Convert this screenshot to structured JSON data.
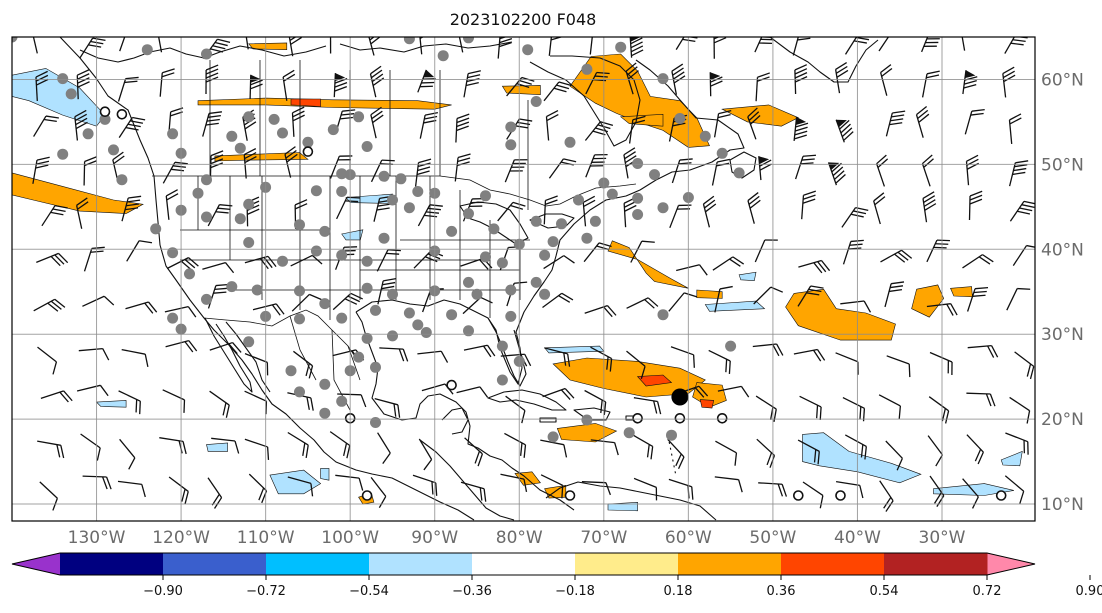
{
  "title": "2023102200 F048",
  "map": {
    "lon_range": [
      -140,
      -19
    ],
    "lat_range": [
      8,
      65
    ],
    "latitude_labels": [
      {
        "lat": 60,
        "label": "60°N"
      },
      {
        "lat": 50,
        "label": "50°N"
      },
      {
        "lat": 40,
        "label": "40°N"
      },
      {
        "lat": 30,
        "label": "30°N"
      },
      {
        "lat": 20,
        "label": "20°N"
      },
      {
        "lat": 10,
        "label": "10°N"
      }
    ],
    "longitude_labels": [
      {
        "lon": -130,
        "label": "130°W"
      },
      {
        "lon": -120,
        "label": "120°W"
      },
      {
        "lon": -110,
        "label": "110°W"
      },
      {
        "lon": -100,
        "label": "100°W"
      },
      {
        "lon": -90,
        "label": "90°W"
      },
      {
        "lon": -80,
        "label": "80°W"
      },
      {
        "lon": -70,
        "label": "70°W"
      },
      {
        "lon": -60,
        "label": "60°W"
      },
      {
        "lon": -50,
        "label": "50°W"
      },
      {
        "lon": -40,
        "label": "40°W"
      },
      {
        "lon": -30,
        "label": "30°W"
      }
    ],
    "gridlines": true
  },
  "colorbar": {
    "extend": "both",
    "colors": [
      "#9932cc",
      "#000080",
      "#3a5fcd",
      "#00bfff",
      "#b0e2ff",
      "#ffffff",
      "#ffec8b",
      "#ffa500",
      "#ff4500",
      "#b22222",
      "#ff88aa"
    ],
    "bounds": [
      -0.9,
      -0.72,
      -0.54,
      -0.36,
      -0.18,
      0.18,
      0.36,
      0.54,
      0.72,
      0.9
    ],
    "tick_labels": [
      "−0.90",
      "−0.72",
      "−0.54",
      "−0.36",
      "−0.18",
      "0.18",
      "0.36",
      "0.54",
      "0.72",
      "0.90"
    ]
  },
  "colors": {
    "orange": "#ffa500",
    "red": "#ff4500",
    "light_blue": "#00bfff",
    "gray_marker": "#808080"
  },
  "fields": [
    {
      "level": 0.36,
      "poly": [
        [
          -76,
          26.5
        ],
        [
          -72,
          27.2
        ],
        [
          -66,
          26.8
        ],
        [
          -61,
          26
        ],
        [
          -58,
          24.6
        ],
        [
          -60,
          23
        ],
        [
          -65,
          22.6
        ],
        [
          -70,
          23.6
        ],
        [
          -74,
          24.6
        ]
      ]
    },
    {
      "level": 0.54,
      "poly": [
        [
          -66,
          25
        ],
        [
          -63,
          25.2
        ],
        [
          -62,
          24.3
        ],
        [
          -65,
          23.9
        ]
      ]
    },
    {
      "level": 0.36,
      "poly": [
        [
          -59,
          24.3
        ],
        [
          -56,
          24
        ],
        [
          -55.5,
          22.2
        ],
        [
          -57.5,
          21.4
        ],
        [
          -59.5,
          22.6
        ]
      ]
    },
    {
      "level": 0.54,
      "poly": [
        [
          -58.6,
          22.3
        ],
        [
          -57,
          22.2
        ],
        [
          -57.2,
          21.3
        ],
        [
          -58.4,
          21.4
        ]
      ]
    },
    {
      "level": 0.36,
      "poly": [
        [
          -75.5,
          18.9
        ],
        [
          -71,
          19.5
        ],
        [
          -68.5,
          18.6
        ],
        [
          -71,
          17.3
        ],
        [
          -75,
          17.6
        ]
      ]
    },
    {
      "level": 0.36,
      "poly": [
        [
          -69,
          41
        ],
        [
          -67,
          40.2
        ],
        [
          -65,
          37.2
        ],
        [
          -64,
          36.2
        ],
        [
          -60,
          35.4
        ],
        [
          -62,
          36.5
        ],
        [
          -66,
          38.8
        ],
        [
          -69.5,
          39.8
        ]
      ]
    },
    {
      "level": 0.36,
      "poly": [
        [
          -59,
          35.2
        ],
        [
          -56,
          35
        ],
        [
          -56,
          34.2
        ],
        [
          -59,
          34.3
        ]
      ]
    },
    {
      "level": 0.36,
      "poly": [
        [
          -47.5,
          34.8
        ],
        [
          -44,
          35.3
        ],
        [
          -42.5,
          33
        ],
        [
          -39,
          32.5
        ],
        [
          -35.5,
          31.2
        ],
        [
          -36,
          29.3
        ],
        [
          -42,
          29.3
        ],
        [
          -47,
          31
        ],
        [
          -48.5,
          33.2
        ]
      ]
    },
    {
      "level": 0.36,
      "poly": [
        [
          -33,
          35.3
        ],
        [
          -30.5,
          35.8
        ],
        [
          -29.8,
          34.2
        ],
        [
          -31.5,
          32
        ],
        [
          -33.6,
          33
        ]
      ]
    },
    {
      "level": 0.36,
      "poly": [
        [
          -29,
          35.4
        ],
        [
          -26.5,
          35.6
        ],
        [
          -26.4,
          34.4
        ],
        [
          -28.6,
          34.5
        ]
      ]
    },
    {
      "level": 0.36,
      "poly": [
        [
          -140,
          49
        ],
        [
          -134,
          47.4
        ],
        [
          -128,
          45.8
        ],
        [
          -124.5,
          45.3
        ],
        [
          -126.5,
          44.2
        ],
        [
          -132,
          44.5
        ],
        [
          -137.5,
          45.8
        ],
        [
          -140,
          46.4
        ]
      ]
    },
    {
      "level": 0.36,
      "poly": [
        [
          -118,
          57.5
        ],
        [
          -110,
          57.8
        ],
        [
          -102,
          57.6
        ],
        [
          -92,
          57.5
        ],
        [
          -88,
          57
        ],
        [
          -90,
          56.5
        ],
        [
          -102,
          56.7
        ],
        [
          -110,
          57
        ],
        [
          -118,
          57
        ]
      ]
    },
    {
      "level": 0.54,
      "poly": [
        [
          -107,
          57.7
        ],
        [
          -103.5,
          57.7
        ],
        [
          -103.5,
          56.8
        ],
        [
          -107,
          57
        ]
      ]
    },
    {
      "level": 0.36,
      "poly": [
        [
          -74,
          59.2
        ],
        [
          -71.5,
          62.7
        ],
        [
          -68,
          63
        ],
        [
          -66,
          61
        ],
        [
          -64.5,
          58
        ],
        [
          -61,
          57.5
        ],
        [
          -59,
          55.5
        ],
        [
          -57.5,
          52.2
        ],
        [
          -60,
          52
        ],
        [
          -63,
          54
        ],
        [
          -66,
          55
        ],
        [
          -68.5,
          56
        ],
        [
          -71,
          57.2
        ]
      ]
    },
    {
      "level": 0.36,
      "poly": [
        [
          -56,
          56.5
        ],
        [
          -50.5,
          57
        ],
        [
          -47,
          55.5
        ],
        [
          -49,
          54.5
        ],
        [
          -53,
          55
        ]
      ]
    },
    {
      "level": 0.36,
      "poly": [
        [
          -82,
          59.2
        ],
        [
          -77.5,
          59.3
        ],
        [
          -77.5,
          58.2
        ],
        [
          -81.5,
          58.4
        ]
      ]
    },
    {
      "level": 0.36,
      "poly": [
        [
          -116,
          51
        ],
        [
          -106,
          51.4
        ],
        [
          -105,
          50.6
        ],
        [
          -112,
          50.5
        ],
        [
          -116,
          50.4
        ]
      ]
    },
    {
      "level": 0.36,
      "poly": [
        [
          -112,
          64.2
        ],
        [
          -107.5,
          64.3
        ],
        [
          -107.5,
          63.5
        ],
        [
          -111.5,
          63.6
        ]
      ]
    },
    {
      "level": 0.36,
      "poly": [
        [
          -99,
          10.8
        ],
        [
          -97.5,
          11.3
        ],
        [
          -97.2,
          10.2
        ],
        [
          -98.5,
          10
        ]
      ]
    },
    {
      "level": 0.36,
      "poly": [
        [
          -80.5,
          13.6
        ],
        [
          -78.5,
          13.8
        ],
        [
          -77.5,
          12.5
        ],
        [
          -79.5,
          12.2
        ]
      ]
    },
    {
      "level": 0.36,
      "poly": [
        [
          -77,
          11.8
        ],
        [
          -74.5,
          12.2
        ],
        [
          -74.5,
          10.8
        ],
        [
          -76.5,
          10.7
        ]
      ]
    },
    {
      "level": 0.36,
      "poly": [
        [
          -68,
          55.6
        ],
        [
          -63,
          55.9
        ],
        [
          -63,
          54.5
        ],
        [
          -67,
          54.8
        ]
      ]
    },
    {
      "level": -0.36,
      "poly": [
        [
          -140,
          60.5
        ],
        [
          -136,
          61.3
        ],
        [
          -132,
          59
        ],
        [
          -129,
          55.8
        ],
        [
          -130,
          54.5
        ],
        [
          -134,
          55.8
        ],
        [
          -138,
          57.5
        ],
        [
          -140,
          58
        ]
      ]
    },
    {
      "level": -0.36,
      "poly": [
        [
          -46.5,
          18.2
        ],
        [
          -44,
          18.4
        ],
        [
          -41,
          16.2
        ],
        [
          -36,
          14.8
        ],
        [
          -32.5,
          13.5
        ],
        [
          -35,
          12.5
        ],
        [
          -40,
          13.8
        ],
        [
          -44.5,
          14.5
        ],
        [
          -46.5,
          15
        ]
      ]
    },
    {
      "level": -0.36,
      "poly": [
        [
          -31,
          11.8
        ],
        [
          -25,
          12.4
        ],
        [
          -21.5,
          11.6
        ],
        [
          -25,
          11
        ],
        [
          -31,
          11.2
        ]
      ]
    },
    {
      "level": -0.36,
      "poly": [
        [
          -23,
          15.2
        ],
        [
          -20.5,
          16.2
        ],
        [
          -20.8,
          14.5
        ],
        [
          -22.8,
          14.6
        ]
      ]
    },
    {
      "level": -0.36,
      "poly": [
        [
          -109.5,
          13.4
        ],
        [
          -105.5,
          14
        ],
        [
          -103.5,
          12.4
        ],
        [
          -105.5,
          11.2
        ],
        [
          -108.5,
          11.2
        ]
      ]
    },
    {
      "level": -0.36,
      "poly": [
        [
          -103.5,
          14.2
        ],
        [
          -102.5,
          14.2
        ],
        [
          -102.5,
          12.8
        ],
        [
          -103.5,
          13
        ]
      ]
    },
    {
      "level": -0.36,
      "poly": [
        [
          -117,
          17
        ],
        [
          -114.5,
          17.2
        ],
        [
          -114.5,
          16.2
        ],
        [
          -116.8,
          16.2
        ]
      ]
    },
    {
      "level": -0.36,
      "poly": [
        [
          -77,
          28.4
        ],
        [
          -70.5,
          28.6
        ],
        [
          -70,
          28
        ],
        [
          -76.5,
          27.8
        ]
      ]
    },
    {
      "level": -0.36,
      "poly": [
        [
          -58,
          33.5
        ],
        [
          -52,
          33.9
        ],
        [
          -51,
          33
        ],
        [
          -57.5,
          32.7
        ]
      ]
    },
    {
      "level": -0.36,
      "poly": [
        [
          -100.5,
          46.1
        ],
        [
          -95,
          46.5
        ],
        [
          -95.5,
          45.4
        ],
        [
          -100,
          45.5
        ]
      ]
    },
    {
      "level": -0.36,
      "poly": [
        [
          -101,
          41.8
        ],
        [
          -98.5,
          42.3
        ],
        [
          -98.8,
          41.1
        ],
        [
          -100.5,
          41.1
        ]
      ]
    },
    {
      "level": -0.36,
      "poly": [
        [
          -130,
          22
        ],
        [
          -126.5,
          22.2
        ],
        [
          -126.5,
          21.4
        ],
        [
          -129.5,
          21.5
        ]
      ]
    },
    {
      "level": -0.36,
      "poly": [
        [
          -69.5,
          10
        ],
        [
          -66,
          10.2
        ],
        [
          -66,
          9.2
        ],
        [
          -69.5,
          9.3
        ]
      ]
    },
    {
      "level": -0.36,
      "poly": [
        [
          -54,
          37
        ],
        [
          -52,
          37.3
        ],
        [
          -52.2,
          36.3
        ],
        [
          -53.8,
          36.4
        ]
      ]
    }
  ],
  "small_stations": [
    [
      -129,
      55.3
    ],
    [
      -131,
      53.6
    ],
    [
      -128,
      51.7
    ],
    [
      -134,
      51.2
    ],
    [
      -127,
      48.2
    ],
    [
      -121,
      53.6
    ],
    [
      -120,
      51.3
    ],
    [
      -114,
      53.3
    ],
    [
      -112,
      55.6
    ],
    [
      -113,
      51.9
    ],
    [
      -109,
      55.3
    ],
    [
      -105,
      52.6
    ],
    [
      -108,
      53.7
    ],
    [
      -102,
      54.1
    ],
    [
      -99,
      55.6
    ],
    [
      -98,
      52.1
    ],
    [
      -100,
      48.8
    ],
    [
      -101,
      46.8
    ],
    [
      -96,
      48.6
    ],
    [
      -94,
      48.3
    ],
    [
      -92,
      46.8
    ],
    [
      -95,
      45.8
    ],
    [
      -90,
      46.6
    ],
    [
      -84,
      46.3
    ],
    [
      -81,
      52.3
    ],
    [
      -81,
      54.4
    ],
    [
      -78,
      57.4
    ],
    [
      -74,
      52.6
    ],
    [
      -70,
      47.8
    ],
    [
      -66,
      50.1
    ],
    [
      -61,
      55.4
    ],
    [
      -64,
      48.8
    ],
    [
      -66,
      46
    ],
    [
      -63,
      44.9
    ],
    [
      -60,
      46.1
    ],
    [
      -73,
      45.8
    ],
    [
      -75,
      43
    ],
    [
      -78,
      43.3
    ],
    [
      -80,
      40.6
    ],
    [
      -77,
      39.3
    ],
    [
      -72,
      41.3
    ],
    [
      -71,
      43.3
    ],
    [
      -83,
      42.4
    ],
    [
      -86,
      44.2
    ],
    [
      -88,
      42.1
    ],
    [
      -90,
      39.8
    ],
    [
      -93,
      44.9
    ],
    [
      -96,
      41.3
    ],
    [
      -98,
      38.6
    ],
    [
      -101,
      39.3
    ],
    [
      -104,
      39.8
    ],
    [
      -108,
      38.6
    ],
    [
      -112,
      40.8
    ],
    [
      -113,
      43.6
    ],
    [
      -117,
      43.8
    ],
    [
      -120,
      44.6
    ],
    [
      -123,
      42.4
    ],
    [
      -121,
      39.6
    ],
    [
      -119,
      37.1
    ],
    [
      -117,
      34.1
    ],
    [
      -114,
      35.6
    ],
    [
      -111,
      35.2
    ],
    [
      -106,
      35.1
    ],
    [
      -103,
      33.6
    ],
    [
      -101,
      31.9
    ],
    [
      -98,
      35.4
    ],
    [
      -95,
      34.7
    ],
    [
      -97,
      32.8
    ],
    [
      -93,
      32.5
    ],
    [
      -90,
      35.1
    ],
    [
      -92,
      31.1
    ],
    [
      -95,
      29.8
    ],
    [
      -98,
      29.5
    ],
    [
      -99,
      27.3
    ],
    [
      -97,
      26.1
    ],
    [
      -91,
      30.2
    ],
    [
      -86,
      30.4
    ],
    [
      -88,
      32.3
    ],
    [
      -85,
      34.7
    ],
    [
      -86,
      36.1
    ],
    [
      -84,
      39.1
    ],
    [
      -81,
      35.2
    ],
    [
      -78,
      36.1
    ],
    [
      -77,
      34.7
    ],
    [
      -81,
      32.1
    ],
    [
      -82,
      28.6
    ],
    [
      -80,
      26.8
    ],
    [
      -82,
      24.6
    ],
    [
      -76,
      40.9
    ],
    [
      -82,
      38.4
    ],
    [
      -106,
      31.8
    ],
    [
      -110,
      32.1
    ],
    [
      -112,
      29.1
    ],
    [
      -107,
      25.7
    ],
    [
      -103,
      24.1
    ],
    [
      -100,
      25.7
    ],
    [
      -101,
      22.1
    ],
    [
      -97,
      19.6
    ],
    [
      -103,
      20.7
    ],
    [
      -106,
      23.2
    ],
    [
      -118,
      46.6
    ],
    [
      -110,
      47.3
    ],
    [
      -104,
      46.9
    ],
    [
      -112,
      45.3
    ],
    [
      -117,
      48.2
    ],
    [
      -106,
      42.9
    ],
    [
      -103,
      42.1
    ],
    [
      -121,
      31.9
    ],
    [
      -120,
      30.6
    ],
    [
      -55,
      28.6
    ],
    [
      -63,
      32.3
    ],
    [
      -76,
      17.9
    ],
    [
      -72,
      19.9
    ],
    [
      -67,
      18.4
    ],
    [
      -62,
      18.1
    ],
    [
      -133,
      58.3
    ],
    [
      -134,
      60.1
    ],
    [
      -124,
      63.5
    ],
    [
      -140,
      65
    ],
    [
      -117,
      63
    ],
    [
      -93,
      64.8
    ],
    [
      -89,
      62.8
    ],
    [
      -86,
      64.9
    ],
    [
      -79,
      63.5
    ],
    [
      -68,
      63.8
    ],
    [
      -72,
      61.2
    ],
    [
      -63,
      60.1
    ],
    [
      -58,
      53.3
    ],
    [
      -54,
      49
    ],
    [
      -56,
      51.3
    ],
    [
      -66,
      44.1
    ],
    [
      -69,
      46.5
    ],
    [
      -101,
      48.9
    ]
  ],
  "big_stations": [
    [
      -61,
      22.6
    ]
  ],
  "open_circles": [
    [
      -129,
      56.2
    ],
    [
      -127,
      55.9
    ],
    [
      -105,
      51.5
    ],
    [
      -100,
      20.1
    ],
    [
      -66,
      20.1
    ],
    [
      -61,
      20.1
    ],
    [
      -56,
      20.1
    ],
    [
      -88,
      24
    ],
    [
      -47,
      11
    ],
    [
      -42,
      11
    ],
    [
      -23,
      11
    ],
    [
      -98,
      11
    ],
    [
      -74,
      11
    ]
  ]
}
